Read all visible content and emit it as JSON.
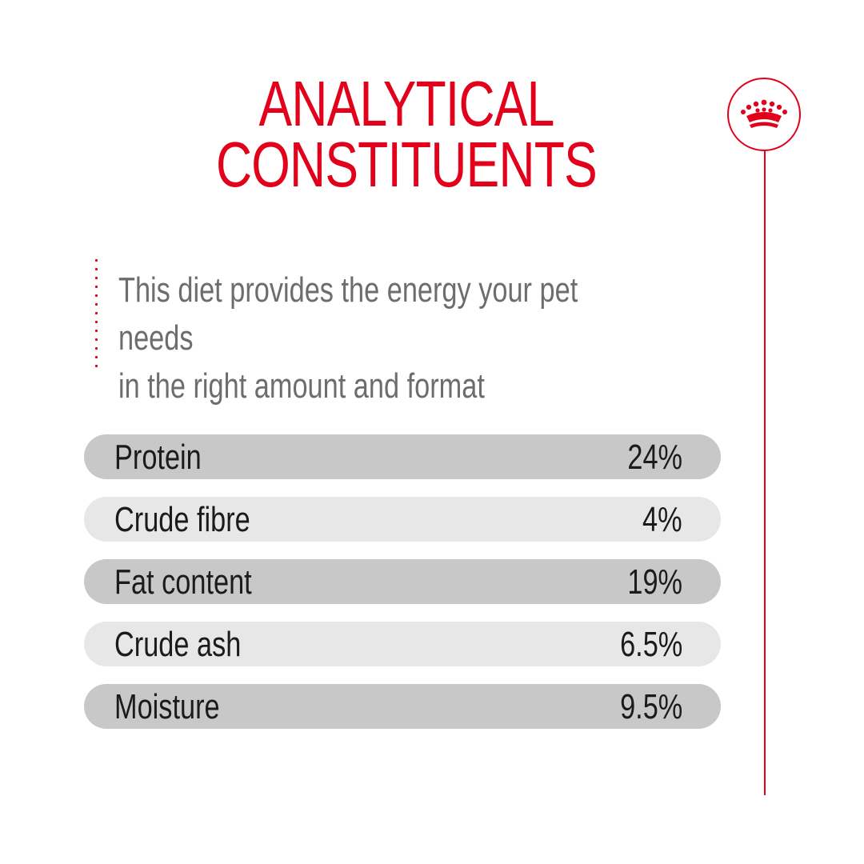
{
  "title": {
    "line1": "ANALYTICAL",
    "line2": "CONSTITUENTS"
  },
  "intro": {
    "line1": "This diet provides the energy your pet needs",
    "line2": "in the right amount and format"
  },
  "badge": {
    "icon": "crown-icon"
  },
  "constituents": [
    {
      "label": "Protein",
      "value": "24%"
    },
    {
      "label": "Crude fibre",
      "value": "4%"
    },
    {
      "label": "Fat content",
      "value": "19%"
    },
    {
      "label": "Crude ash",
      "value": "6.5%"
    },
    {
      "label": "Moisture",
      "value": "9.5%"
    }
  ],
  "colors": {
    "accent": "#e2001a",
    "row_dark": "#c8c8c8",
    "row_light": "#e7e7e7",
    "intro_text": "#6d6d6d"
  }
}
